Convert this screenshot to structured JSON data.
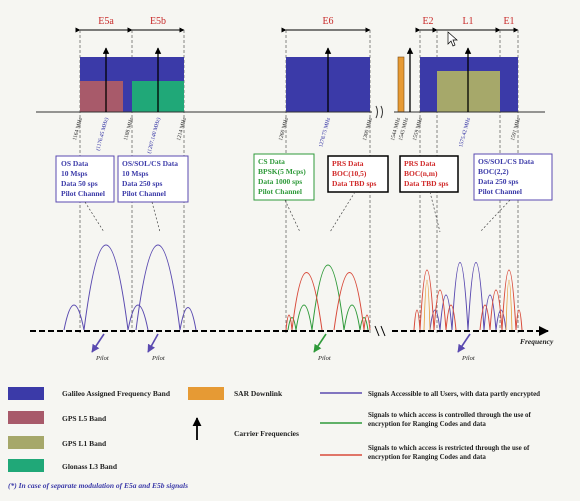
{
  "band_labels": {
    "e5a": "E5a",
    "e5b": "E5b",
    "e6": "E6",
    "e2": "E2",
    "l1": "L1",
    "e1": "E1"
  },
  "freq_labels": {
    "f1164": "1164 MHz",
    "f1176": "(1176.45 MHz)",
    "f1188": "1188 MHz",
    "f1207": "(1207.140 MHz)",
    "f1214": "1214 MHz",
    "f1260": "1260 MHz",
    "f1278": "1278.75 MHz",
    "f1300": "1300 MHz",
    "f1544": "1544 MHz",
    "f1545": "1545 MHz",
    "f1559": "1559 MHz",
    "f1575": "1575.42 MHz",
    "f1591": "1591 MHz"
  },
  "boxes": {
    "os_e5a": [
      "OS Data",
      "10 Msps",
      "Data 50 sps",
      "Pilot Channel"
    ],
    "os_e5b": [
      "OS/SOL/CS Data",
      "10 Msps",
      "Data 250 sps",
      "Pilot Channel"
    ],
    "cs_e6": [
      "CS Data",
      "BPSK(5 Mcps)",
      "Data 1000 sps",
      "Pilot Channel"
    ],
    "prs_e6": [
      "PRS Data",
      "BOC(10,5)",
      "Data TBD sps"
    ],
    "prs_l1": [
      "PRS Data",
      "BOC(n,m)",
      "Data TBD sps"
    ],
    "os_l1": [
      "OS/SOL/CS Data",
      "BOC(2,2)",
      "Data 250 sps",
      "Pilot Channel"
    ]
  },
  "axis": {
    "frequency": "Frequency"
  },
  "pilot_labels": {
    "p1": "Pilot",
    "p2": "Pilot",
    "p3": "Pilot",
    "p4": "Pilot"
  },
  "legend": {
    "galileo": "Galileo Assigned Frequency Band",
    "sar": "SAR Downlink",
    "gps_l5": "GPS L5 Band",
    "carrier": "Carrier Frequencies",
    "gps_l1": "GPS L1 Band",
    "glonass": "Glonass L3 Band",
    "sig_all": "Signals Accessible to all Users, with data partly encrypted",
    "sig_controlled_1": "Signals to which access is controlled  through the use of",
    "sig_controlled_2": "encryption for Ranging Codes and data",
    "sig_restricted_1": "Signals to which access is restricted through the use of",
    "sig_restricted_2": "encryption for Ranging Codes and data"
  },
  "footnote": "(*) In case of separate modulation of E5a and E5b signals",
  "colors": {
    "galileo": "#3b3aa8",
    "gps_l5": "#a85a6a",
    "gps_l1": "#a6a86a",
    "glonass": "#20a878",
    "sar": "#e69a34",
    "open": "#5a4ab0",
    "controlled": "#2f9a3a",
    "restricted": "#d84a3a"
  }
}
